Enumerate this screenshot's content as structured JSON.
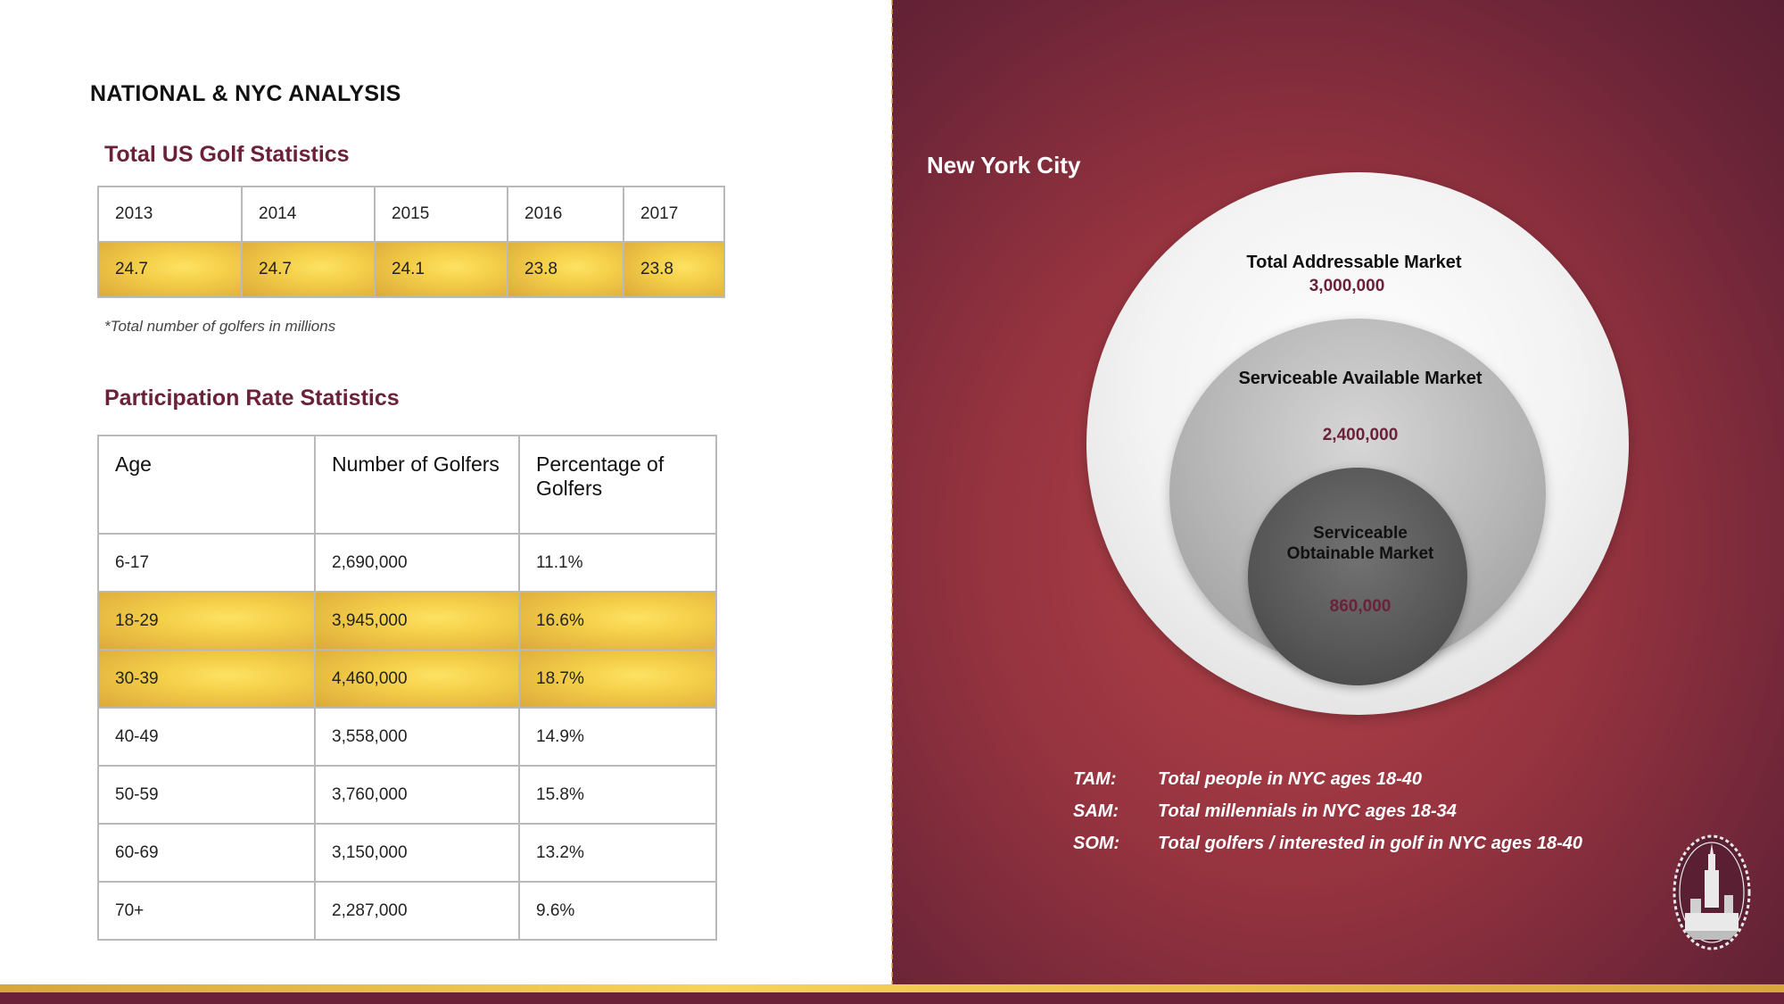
{
  "left": {
    "main_title": "NATIONAL & NYC ANALYSIS",
    "golf_stats": {
      "title": "Total US Golf Statistics",
      "years": [
        "2013",
        "2014",
        "2015",
        "2016",
        "2017"
      ],
      "values": [
        "24.7",
        "24.7",
        "24.1",
        "23.8",
        "23.8"
      ],
      "note": "*Total number of golfers in millions"
    },
    "participation": {
      "title": "Participation Rate Statistics",
      "headers": [
        "Age",
        "Number of Golfers",
        "Percentage of Golfers"
      ],
      "rows": [
        [
          "6-17",
          "2,690,000",
          "11.1%"
        ],
        [
          "18-29",
          "3,945,000",
          "16.6%"
        ],
        [
          "30-39",
          "4,460,000",
          "18.7%"
        ],
        [
          "40-49",
          "3,558,000",
          "14.9%"
        ],
        [
          "50-59",
          "3,760,000",
          "15.8%"
        ],
        [
          "60-69",
          "3,150,000",
          "13.2%"
        ],
        [
          "70+",
          "2,287,000",
          "9.6%"
        ]
      ],
      "highlighted_rows": [
        1,
        2
      ]
    }
  },
  "right": {
    "title": "New York City",
    "tam": {
      "label": "Total Addressable Market",
      "value": "3,000,000"
    },
    "sam": {
      "label": "Serviceable Available Market",
      "value": "2,400,000"
    },
    "som": {
      "label": "Serviceable Obtainable Market",
      "value": "860,000"
    },
    "legend": [
      {
        "key": "TAM:",
        "text": "Total people in NYC ages 18-40"
      },
      {
        "key": "SAM:",
        "text": "Total millennials in NYC ages 18-34"
      },
      {
        "key": "SOM:",
        "text": "Total golfers / interested in golf in NYC ages 18-40"
      }
    ]
  },
  "colors": {
    "maroon": "#6b2138",
    "gold": "#f5d04a",
    "accent_text": "#6b2138"
  },
  "icons": {
    "logo": "nyc-skyline-badge-icon"
  }
}
